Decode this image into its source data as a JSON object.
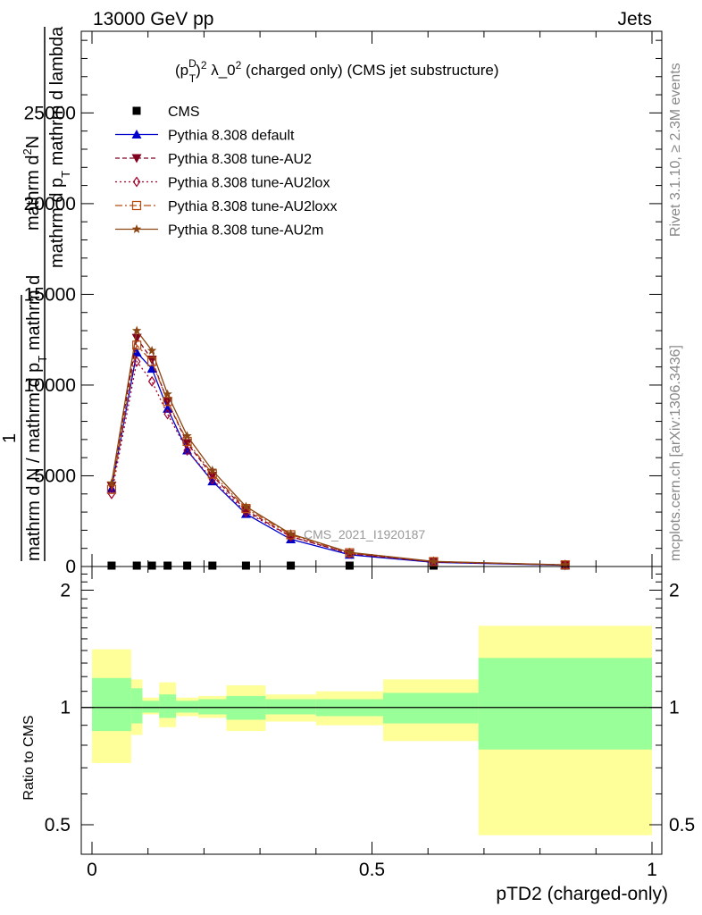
{
  "header": {
    "left": "13000 GeV pp",
    "right": "Jets"
  },
  "side_labels": {
    "rivet": "Rivet 3.1.10, ≥ 2.3M events",
    "mcplots": "mcplots.cern.ch [arXiv:1306.3436]"
  },
  "watermark": "CMS_2021_I1920187",
  "colors": {
    "cms": "#000000",
    "default": "#0000cc",
    "AU2": "#800020",
    "AU2lox": "#a0002a",
    "AU2loxx": "#b84a10",
    "AU2m": "#8b4513",
    "band_yellow": "#ffff99",
    "band_green": "#99ff99"
  },
  "chart_data": [
    {
      "type": "line",
      "title_parts": {
        "base": "(p",
        "sub": "T",
        "sup": "D",
        "exp": "2",
        "lambda": "λ_0",
        "lexp": "2",
        "rest": "(charged only) (CMS jet substructure)"
      },
      "ylabel_parts": {
        "numerator_one": "1",
        "denominator": "mathrm d N / mathrm d p",
        "denominator_sub": "T",
        "denominator_rest": "mathrm d",
        "rhs_top": "mathrm d",
        "rhs_top_sup": "2",
        "rhs_top_N": "N",
        "rhs_bottom": "mathrm d p",
        "rhs_bottom_sub": "T",
        "rhs_bottom_rest": "mathrm d lambda"
      },
      "xlim": [
        0,
        1
      ],
      "ylim": [
        0,
        29500
      ],
      "yticks": [
        0,
        5000,
        10000,
        15000,
        20000,
        25000
      ],
      "ytick_labels": [
        "0",
        "5000",
        "10000",
        "15000",
        "20000",
        "25000"
      ],
      "x": [
        0.035,
        0.08,
        0.107,
        0.135,
        0.17,
        0.215,
        0.275,
        0.355,
        0.46,
        0.61,
        0.845
      ],
      "series": [
        {
          "name": "CMS",
          "key": "cms",
          "marker": "square",
          "values": [
            0,
            0,
            0,
            0,
            0,
            0,
            0,
            0,
            0,
            0,
            0
          ]
        },
        {
          "name": "Pythia 8.308 default",
          "key": "default",
          "marker": "triangle-up",
          "dash": "",
          "values": [
            4300,
            11800,
            10900,
            8700,
            6400,
            4700,
            2900,
            1500,
            650,
            230,
            70
          ]
        },
        {
          "name": "Pythia 8.308 tune-AU2",
          "key": "AU2",
          "marker": "triangle-down",
          "dash": "5,3",
          "values": [
            4450,
            12600,
            11400,
            9100,
            6800,
            5000,
            3100,
            1650,
            710,
            250,
            80
          ]
        },
        {
          "name": "Pythia 8.308 tune-AU2lox",
          "key": "AU2lox",
          "marker": "diamond",
          "dash": "2,3",
          "values": [
            4000,
            11300,
            10200,
            8400,
            6400,
            4800,
            3000,
            1650,
            720,
            260,
            85
          ]
        },
        {
          "name": "Pythia 8.308 tune-AU2loxx",
          "key": "AU2loxx",
          "marker": "square-open",
          "dash": "8,3,2,3",
          "values": [
            4250,
            12200,
            11300,
            9100,
            6900,
            5100,
            3200,
            1750,
            760,
            270,
            90
          ]
        },
        {
          "name": "Pythia 8.308 tune-AU2m",
          "key": "AU2m",
          "marker": "star",
          "dash": "",
          "values": [
            4600,
            13000,
            11900,
            9500,
            7200,
            5300,
            3300,
            1800,
            780,
            280,
            90
          ]
        }
      ]
    },
    {
      "type": "area",
      "ylabel": "Ratio to CMS",
      "xlabel": "pTD2 (charged-only)",
      "xlim": [
        0,
        1
      ],
      "ylim": [
        0.42,
        2.3
      ],
      "xticks": [
        0,
        0.5,
        1
      ],
      "xtick_labels": [
        "0",
        "0.5",
        "1"
      ],
      "yticks": [
        0.5,
        1,
        2
      ],
      "ytick_labels": [
        "0.5",
        "1",
        "2"
      ],
      "reference_line": 1,
      "bins": [
        {
          "x0": 0.0,
          "x1": 0.07,
          "yellow": [
            0.72,
            1.41
          ],
          "green": [
            0.87,
            1.19
          ]
        },
        {
          "x0": 0.07,
          "x1": 0.09,
          "yellow": [
            0.85,
            1.18
          ],
          "green": [
            0.91,
            1.12
          ]
        },
        {
          "x0": 0.09,
          "x1": 0.12,
          "yellow": [
            0.96,
            1.06
          ],
          "green": [
            0.97,
            1.04
          ]
        },
        {
          "x0": 0.12,
          "x1": 0.15,
          "yellow": [
            0.89,
            1.16
          ],
          "green": [
            0.94,
            1.08
          ]
        },
        {
          "x0": 0.15,
          "x1": 0.19,
          "yellow": [
            0.95,
            1.06
          ],
          "green": [
            0.97,
            1.04
          ]
        },
        {
          "x0": 0.19,
          "x1": 0.24,
          "yellow": [
            0.94,
            1.07
          ],
          "green": [
            0.96,
            1.05
          ]
        },
        {
          "x0": 0.24,
          "x1": 0.31,
          "yellow": [
            0.87,
            1.14
          ],
          "green": [
            0.93,
            1.07
          ]
        },
        {
          "x0": 0.31,
          "x1": 0.4,
          "yellow": [
            0.92,
            1.08
          ],
          "green": [
            0.96,
            1.05
          ]
        },
        {
          "x0": 0.4,
          "x1": 0.52,
          "yellow": [
            0.9,
            1.1
          ],
          "green": [
            0.95,
            1.05
          ]
        },
        {
          "x0": 0.52,
          "x1": 0.69,
          "yellow": [
            0.82,
            1.18
          ],
          "green": [
            0.91,
            1.09
          ]
        },
        {
          "x0": 0.69,
          "x1": 1.0,
          "yellow": [
            0.47,
            1.62
          ],
          "green": [
            0.78,
            1.34
          ]
        }
      ]
    }
  ]
}
